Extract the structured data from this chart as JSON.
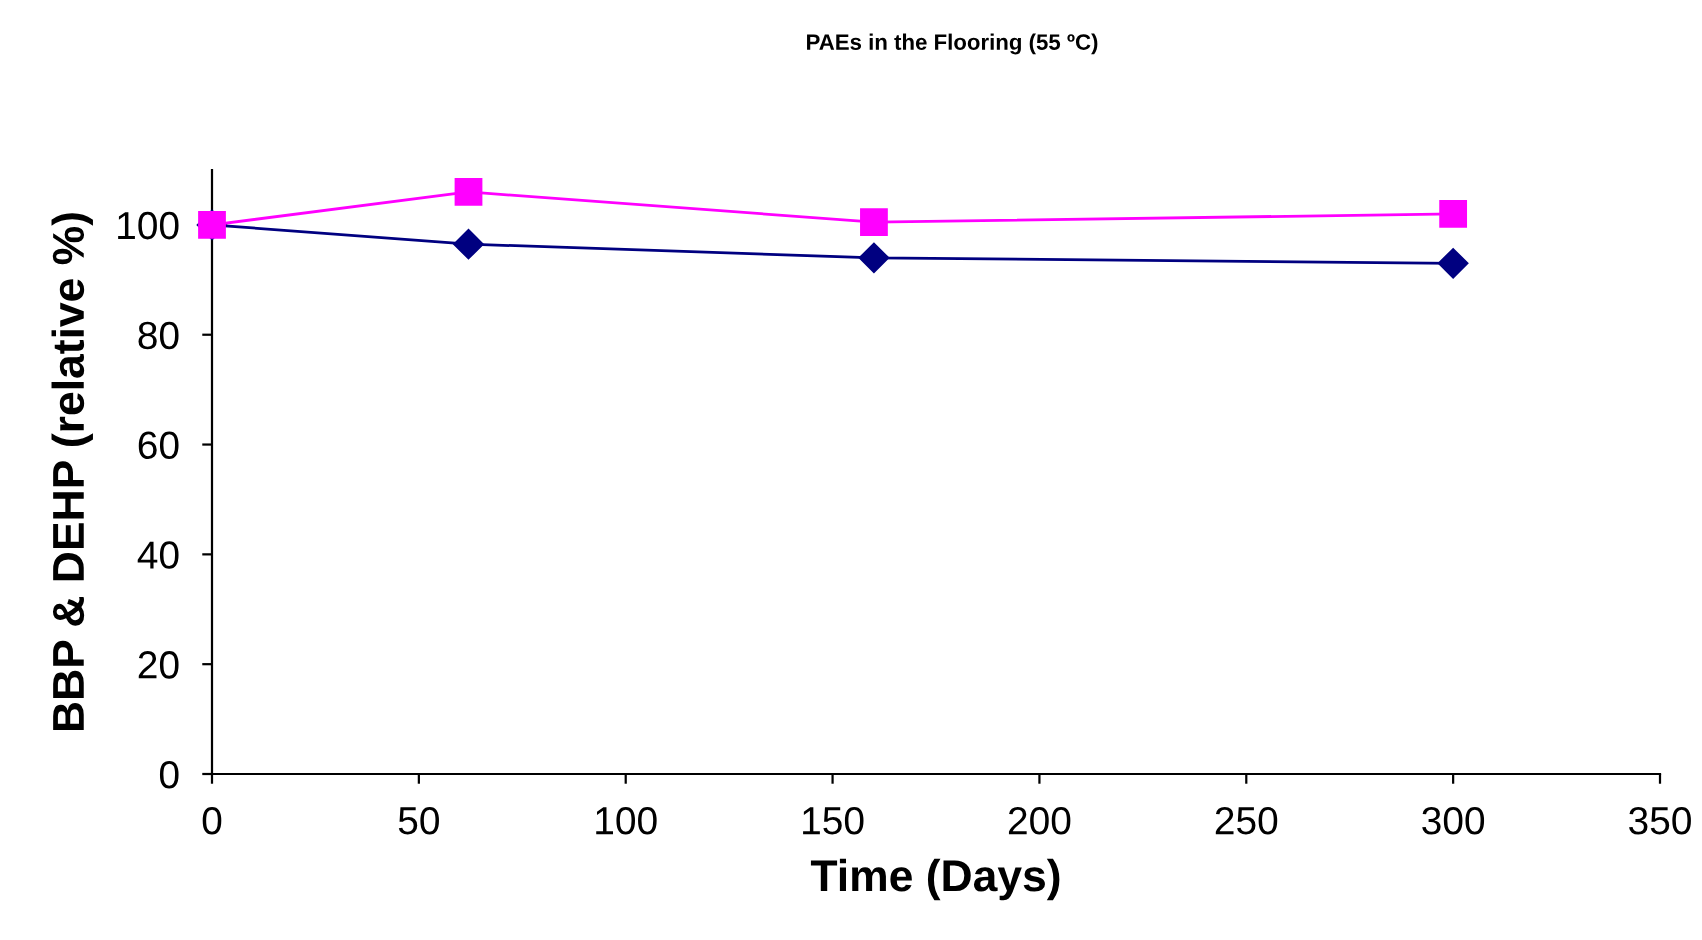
{
  "chart_data": {
    "type": "line",
    "title": "PAEs in the Flooring (55 ºC)",
    "xlabel": "Time (Days)",
    "ylabel": "BBP & DEHP (relative %)",
    "x": [
      0,
      62,
      160,
      300
    ],
    "series": [
      {
        "color": "#000080",
        "values": [
          100,
          96.5,
          94,
          93
        ],
        "marker": "diamond"
      },
      {
        "color": "#ff00ff",
        "values": [
          100,
          106,
          100.5,
          102
        ],
        "marker": "square"
      }
    ],
    "xlim": [
      0,
      350
    ],
    "xticks": [
      0,
      50,
      100,
      150,
      200,
      250,
      300,
      350
    ],
    "ylim": [
      0,
      110
    ],
    "yticks": [
      0,
      20,
      40,
      60,
      80,
      100
    ],
    "grid": false,
    "line_style": "solid"
  }
}
